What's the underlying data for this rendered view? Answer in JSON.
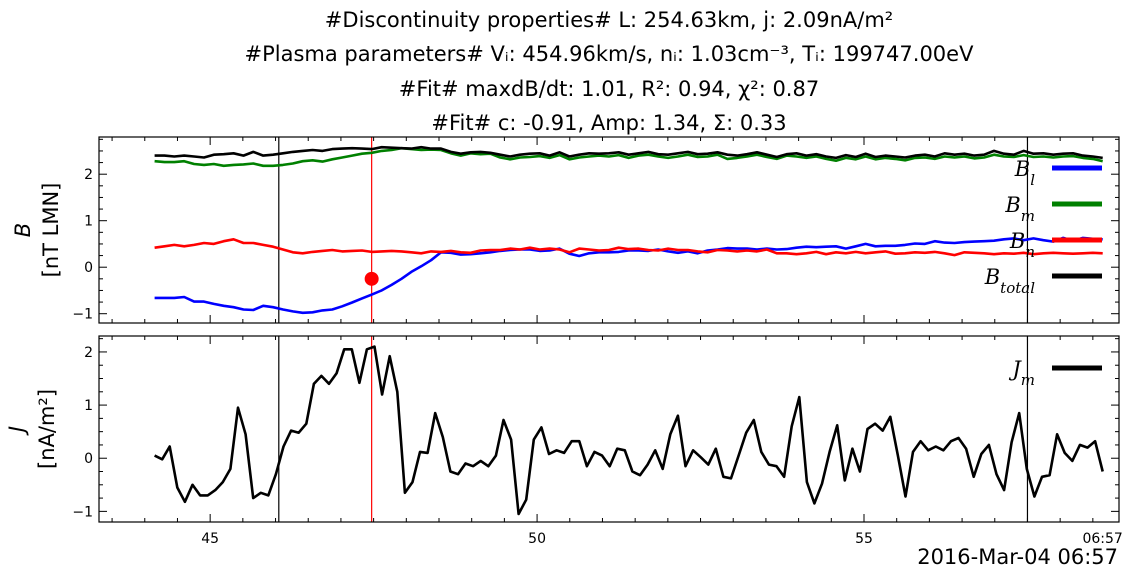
{
  "chart_data": [
    {
      "type": "line",
      "panel": "top",
      "title_lines": [
        "#Discontinuity properties# L: 254.63km, j: 2.09nA/m²",
        "#Plasma parameters# Vᵢ: 454.96km/s, nᵢ: 1.03cm⁻³, Tᵢ: 199747.00eV",
        "#Fit# maxdB/dt: 1.01, R²: 0.94, χ²: 0.87",
        "#Fit# c: -0.91, Amp: 1.34, Σ: 0.33"
      ],
      "ylabel_line1": "B",
      "ylabel_line2": "[nT LMN]",
      "xlim": [
        43.3,
        58.9
      ],
      "ylim": [
        -1.2,
        2.8
      ],
      "yticks": [
        -1,
        0,
        1,
        2
      ],
      "ytick_labels": [
        "−1",
        "0",
        "1",
        "2"
      ],
      "vlines_black": [
        46.05,
        57.5
      ],
      "vline_red": 47.47,
      "marker": {
        "x": 47.47,
        "y": -0.25,
        "color": "#ff0000"
      },
      "series": [
        {
          "name": "B_l",
          "label_main": "B",
          "label_sub": "l",
          "color": "#0000ff",
          "values": [
            -0.66,
            -0.66,
            -0.66,
            -0.64,
            -0.74,
            -0.74,
            -0.79,
            -0.83,
            -0.86,
            -0.91,
            -0.92,
            -0.83,
            -0.86,
            -0.91,
            -0.95,
            -0.98,
            -0.97,
            -0.93,
            -0.91,
            -0.84,
            -0.76,
            -0.67,
            -0.59,
            -0.5,
            -0.38,
            -0.25,
            -0.1,
            0.02,
            0.15,
            0.32,
            0.31,
            0.27,
            0.28,
            0.3,
            0.32,
            0.35,
            0.37,
            0.38,
            0.38,
            0.35,
            0.36,
            0.4,
            0.29,
            0.24,
            0.3,
            0.32,
            0.32,
            0.33,
            0.36,
            0.36,
            0.35,
            0.38,
            0.34,
            0.31,
            0.34,
            0.3,
            0.36,
            0.38,
            0.41,
            0.4,
            0.4,
            0.38,
            0.4,
            0.38,
            0.39,
            0.42,
            0.44,
            0.43,
            0.44,
            0.45,
            0.4,
            0.45,
            0.5,
            0.45,
            0.46,
            0.46,
            0.48,
            0.51,
            0.5,
            0.56,
            0.53,
            0.52,
            0.54,
            0.55,
            0.56,
            0.57,
            0.6,
            0.62,
            0.58,
            0.62,
            0.58,
            0.55,
            0.63,
            0.57,
            0.63,
            0.61,
            0.6
          ]
        },
        {
          "name": "B_m",
          "label_main": "B",
          "label_sub": "m",
          "color": "#008000",
          "values": [
            2.28,
            2.26,
            2.26,
            2.28,
            2.22,
            2.2,
            2.22,
            2.18,
            2.2,
            2.21,
            2.23,
            2.18,
            2.18,
            2.2,
            2.23,
            2.28,
            2.3,
            2.27,
            2.32,
            2.36,
            2.4,
            2.44,
            2.46,
            2.5,
            2.52,
            2.56,
            2.54,
            2.52,
            2.53,
            2.52,
            2.45,
            2.4,
            2.45,
            2.43,
            2.44,
            2.36,
            2.32,
            2.36,
            2.37,
            2.39,
            2.35,
            2.41,
            2.32,
            2.36,
            2.38,
            2.4,
            2.38,
            2.41,
            2.35,
            2.4,
            2.42,
            2.38,
            2.35,
            2.38,
            2.42,
            2.37,
            2.38,
            2.42,
            2.33,
            2.35,
            2.38,
            2.42,
            2.37,
            2.33,
            2.4,
            2.38,
            2.35,
            2.38,
            2.33,
            2.29,
            2.35,
            2.32,
            2.38,
            2.32,
            2.35,
            2.33,
            2.3,
            2.35,
            2.36,
            2.33,
            2.38,
            2.36,
            2.38,
            2.34,
            2.36,
            2.42,
            2.38,
            2.37,
            2.41,
            2.37,
            2.38,
            2.36,
            2.38,
            2.39,
            2.35,
            2.33,
            2.28
          ]
        },
        {
          "name": "B_n",
          "label_main": "B",
          "label_sub": "n",
          "color": "#ff0000",
          "values": [
            0.42,
            0.45,
            0.48,
            0.45,
            0.48,
            0.52,
            0.5,
            0.56,
            0.6,
            0.52,
            0.52,
            0.48,
            0.44,
            0.38,
            0.32,
            0.3,
            0.33,
            0.35,
            0.37,
            0.34,
            0.35,
            0.36,
            0.33,
            0.34,
            0.35,
            0.34,
            0.32,
            0.3,
            0.34,
            0.33,
            0.35,
            0.32,
            0.31,
            0.36,
            0.37,
            0.37,
            0.4,
            0.38,
            0.42,
            0.38,
            0.4,
            0.38,
            0.32,
            0.4,
            0.38,
            0.36,
            0.37,
            0.42,
            0.39,
            0.4,
            0.37,
            0.36,
            0.4,
            0.37,
            0.37,
            0.34,
            0.32,
            0.37,
            0.36,
            0.34,
            0.36,
            0.34,
            0.38,
            0.3,
            0.3,
            0.28,
            0.3,
            0.33,
            0.28,
            0.32,
            0.3,
            0.33,
            0.3,
            0.32,
            0.34,
            0.29,
            0.3,
            0.32,
            0.31,
            0.33,
            0.3,
            0.26,
            0.32,
            0.31,
            0.3,
            0.28,
            0.3,
            0.29,
            0.31,
            0.28,
            0.3,
            0.31,
            0.3,
            0.29,
            0.3,
            0.31,
            0.3
          ]
        },
        {
          "name": "B_total",
          "label_main": "B",
          "label_sub": "total",
          "color": "#000000",
          "values": [
            2.4,
            2.4,
            2.38,
            2.4,
            2.38,
            2.36,
            2.42,
            2.43,
            2.45,
            2.4,
            2.48,
            2.4,
            2.42,
            2.45,
            2.48,
            2.5,
            2.52,
            2.5,
            2.54,
            2.55,
            2.56,
            2.55,
            2.54,
            2.58,
            2.57,
            2.56,
            2.55,
            2.58,
            2.55,
            2.55,
            2.48,
            2.44,
            2.47,
            2.48,
            2.46,
            2.42,
            2.38,
            2.42,
            2.44,
            2.45,
            2.4,
            2.47,
            2.38,
            2.42,
            2.45,
            2.44,
            2.45,
            2.47,
            2.42,
            2.45,
            2.48,
            2.43,
            2.42,
            2.45,
            2.48,
            2.43,
            2.44,
            2.47,
            2.42,
            2.4,
            2.43,
            2.47,
            2.42,
            2.37,
            2.43,
            2.45,
            2.4,
            2.43,
            2.38,
            2.35,
            2.41,
            2.37,
            2.44,
            2.37,
            2.4,
            2.38,
            2.36,
            2.4,
            2.42,
            2.38,
            2.45,
            2.42,
            2.44,
            2.4,
            2.42,
            2.5,
            2.44,
            2.42,
            2.5,
            2.44,
            2.45,
            2.42,
            2.44,
            2.45,
            2.4,
            2.38,
            2.35
          ]
        }
      ]
    },
    {
      "type": "line",
      "panel": "bottom",
      "ylabel_line1": "J",
      "ylabel_line2": "[nA/m²]",
      "xlim": [
        43.3,
        58.9
      ],
      "ylim": [
        -1.2,
        2.3
      ],
      "yticks": [
        -1,
        0,
        1,
        2
      ],
      "ytick_labels": [
        "−1",
        "0",
        "1",
        "2"
      ],
      "xticks": [
        45,
        50,
        55,
        58.65
      ],
      "xtick_labels": [
        "45",
        "50",
        "55",
        "06:57"
      ],
      "vlines_black": [
        46.05,
        57.5
      ],
      "vline_red": 47.47,
      "series": [
        {
          "name": "J_m",
          "label_main": "J",
          "label_sub": "m",
          "color": "#000000",
          "values": [
            0.05,
            -0.02,
            0.22,
            -0.55,
            -0.82,
            -0.5,
            -0.7,
            -0.7,
            -0.6,
            -0.45,
            -0.2,
            0.95,
            0.45,
            -0.75,
            -0.65,
            -0.7,
            -0.3,
            0.22,
            0.52,
            0.48,
            0.65,
            1.4,
            1.55,
            1.4,
            1.6,
            2.05,
            2.05,
            1.42,
            2.05,
            2.1,
            1.2,
            1.92,
            1.25,
            -0.65,
            -0.45,
            0.12,
            0.1,
            0.85,
            0.4,
            -0.25,
            -0.3,
            -0.1,
            -0.15,
            -0.05,
            -0.15,
            0.05,
            0.72,
            0.35,
            -1.05,
            -0.78,
            0.35,
            0.58,
            0.08,
            0.15,
            0.1,
            0.32,
            0.32,
            -0.15,
            0.12,
            0.05,
            -0.15,
            0.18,
            0.15,
            -0.25,
            -0.32,
            -0.12,
            0.15,
            -0.2,
            0.45,
            0.8,
            -0.15,
            0.15,
            0.02,
            -0.12,
            0.18,
            -0.35,
            -0.38,
            0.05,
            0.48,
            0.72,
            0.12,
            -0.12,
            -0.15,
            -0.35,
            0.6,
            1.15,
            -0.45,
            -0.85,
            -0.48,
            0.12,
            0.62,
            -0.42,
            0.18,
            -0.25,
            0.55,
            0.65,
            0.52,
            0.78,
            0.05,
            -0.72,
            0.12,
            0.32,
            0.15,
            0.22,
            0.15,
            0.32,
            0.38,
            0.18,
            -0.35,
            0.08,
            0.25,
            -0.3,
            -0.6,
            0.3,
            0.85,
            -0.2,
            -0.72,
            -0.35,
            -0.32,
            0.45,
            0.1,
            -0.05,
            0.25,
            0.2,
            0.32,
            -0.25
          ]
        }
      ]
    }
  ],
  "date_label": "2016-Mar-04 06:57",
  "colors": {
    "background": "#ffffff",
    "axis": "#000000",
    "red_line": "#ff0000"
  }
}
